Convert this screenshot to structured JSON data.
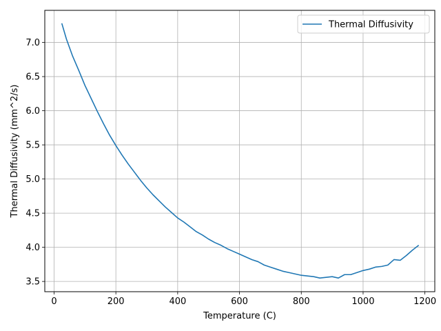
{
  "chart_data": {
    "type": "line",
    "title": "",
    "xlabel": "Temperature (C)",
    "ylabel": "Thermal Diffusivity (mm^2/s)",
    "xlim": [
      -30,
      1232
    ],
    "ylim": [
      3.35,
      7.47
    ],
    "xticks": [
      0,
      200,
      400,
      600,
      800,
      1000,
      1200
    ],
    "yticks": [
      3.5,
      4.0,
      4.5,
      5.0,
      5.5,
      6.0,
      6.5,
      7.0
    ],
    "xtick_labels": [
      "0",
      "200",
      "400",
      "600",
      "800",
      "1000",
      "1200"
    ],
    "ytick_labels": [
      "3.5",
      "4.0",
      "4.5",
      "5.0",
      "5.5",
      "6.0",
      "6.5",
      "7.0"
    ],
    "grid": true,
    "legend_position": "top-right",
    "series": [
      {
        "name": "Thermal Diffusivity",
        "color": "#1f77b4",
        "x": [
          25,
          40,
          60,
          80,
          100,
          120,
          140,
          160,
          180,
          200,
          220,
          240,
          260,
          280,
          300,
          320,
          340,
          360,
          380,
          400,
          420,
          440,
          460,
          480,
          500,
          520,
          540,
          560,
          580,
          600,
          620,
          640,
          660,
          680,
          700,
          720,
          740,
          760,
          780,
          800,
          820,
          840,
          860,
          880,
          900,
          920,
          940,
          960,
          980,
          1000,
          1020,
          1040,
          1060,
          1080,
          1100,
          1120,
          1140,
          1160,
          1180
        ],
        "y": [
          7.28,
          7.05,
          6.8,
          6.59,
          6.37,
          6.18,
          5.99,
          5.81,
          5.64,
          5.49,
          5.35,
          5.22,
          5.1,
          4.98,
          4.87,
          4.77,
          4.68,
          4.59,
          4.51,
          4.43,
          4.37,
          4.3,
          4.23,
          4.18,
          4.12,
          4.07,
          4.03,
          3.98,
          3.94,
          3.9,
          3.86,
          3.82,
          3.79,
          3.74,
          3.71,
          3.68,
          3.65,
          3.63,
          3.61,
          3.59,
          3.58,
          3.57,
          3.55,
          3.56,
          3.57,
          3.55,
          3.6,
          3.6,
          3.63,
          3.66,
          3.68,
          3.71,
          3.72,
          3.74,
          3.82,
          3.81,
          3.88,
          3.96,
          4.03
        ]
      }
    ]
  }
}
